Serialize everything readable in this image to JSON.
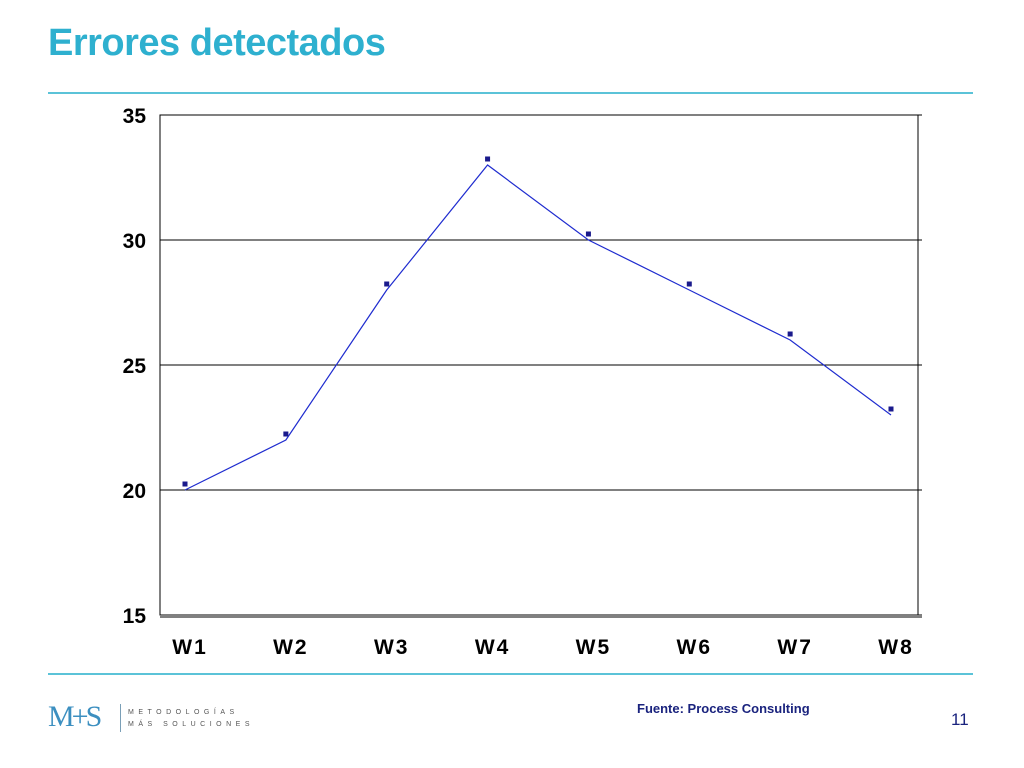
{
  "page": {
    "title": "Errores detectados",
    "source": "Fuente: Process Consulting",
    "page_number": "11"
  },
  "logo": {
    "mark": "M+S",
    "line1": "METODOLOGÍAS",
    "line2": "MÁS SOLUCIONES"
  },
  "colors": {
    "title": "#2eb0cf",
    "rule": "#5bc3d8",
    "series": "#1f2ccf",
    "marker": "#1a1a8c",
    "text_dark": "#1a237e"
  },
  "chart_data": {
    "type": "line",
    "title": "",
    "xlabel": "",
    "ylabel": "",
    "categories": [
      "W1",
      "W2",
      "W3",
      "W4",
      "W5",
      "W6",
      "W7",
      "W8"
    ],
    "series": [
      {
        "values": [
          20,
          22,
          28,
          33,
          30,
          28,
          26,
          23
        ]
      }
    ],
    "ylim": [
      15,
      35
    ],
    "yticks": [
      15,
      20,
      25,
      30,
      35
    ],
    "ytick_labels": [
      "15",
      "20",
      "25",
      "30",
      "35"
    ],
    "grid": true,
    "legend": "none"
  }
}
